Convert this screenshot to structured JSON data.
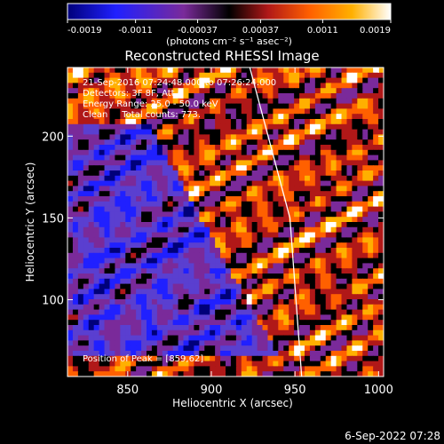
{
  "chart_data": {
    "type": "heatmap",
    "title": "Reconstructed RHESSI Image",
    "xlabel": "Heliocentric X (arcsec)",
    "ylabel": "Heliocentric Y (arcsec)",
    "xlim": [
      814,
      1003
    ],
    "ylim": [
      53,
      242
    ],
    "x_ticks": [
      850,
      900,
      950,
      1000
    ],
    "y_ticks": [
      100,
      150,
      200
    ],
    "colorbar": {
      "range": [
        -0.0019,
        0.0019
      ],
      "tick_values": [
        -0.0019,
        -0.0011,
        -0.00037,
        0.00037,
        0.0011,
        0.0019
      ],
      "tick_labels": [
        "-0.0019",
        "-0.0011",
        "-0.00037",
        "0.00037",
        "0.0011",
        "0.0019"
      ],
      "units": "(photons cm⁻² s⁻¹ asec⁻²)",
      "colors": [
        "#00007a",
        "#2020ff",
        "#7a2a9a",
        "#000000",
        "#b01818",
        "#ff6000",
        "#ffb000",
        "#ffffff"
      ]
    },
    "annotations": [
      "21-Sep-2016 07:24:48.000 to 07:26:24.000",
      "Detectors: 3F 8F, Att 0",
      "Energy Range: 25.0 - 50.0 keV",
      "Clean     Total counts: 773."
    ],
    "peak_label": "Position of Peak = [859,62]",
    "limb_line": [
      [
        923,
        242
      ],
      [
        947,
        150
      ],
      [
        954,
        53
      ]
    ],
    "footer": "6-Sep-2022 07:28"
  }
}
